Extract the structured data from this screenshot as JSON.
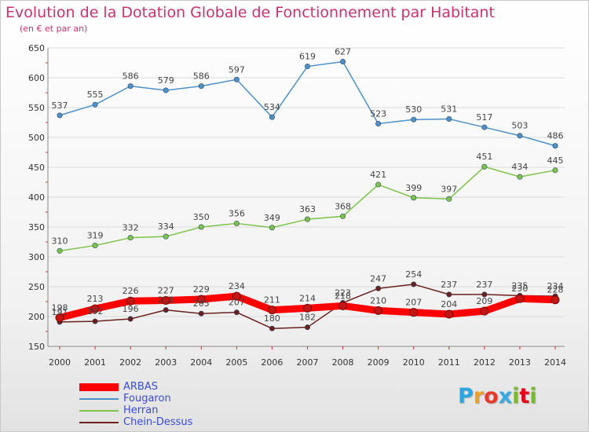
{
  "title": "Evolution de la Dotation Globale de Fonctionnement par Habitant",
  "subtitle": "(en € et par an)",
  "logo": {
    "text": "Proxiti",
    "letter_colors": [
      "#2aa7e0",
      "#f0a020",
      "#e83a2a",
      "#36a9e1",
      "#7ab92e",
      "#e2001a",
      "#7ab92e"
    ]
  },
  "chart_data": {
    "type": "line",
    "x": [
      2000,
      2001,
      2002,
      2003,
      2004,
      2005,
      2006,
      2007,
      2008,
      2009,
      2010,
      2011,
      2012,
      2013,
      2014
    ],
    "ylim": [
      150,
      650
    ],
    "yticks": [
      150,
      200,
      250,
      300,
      350,
      400,
      450,
      500,
      550,
      600,
      650
    ],
    "grid": "horizontal",
    "legend_position": "bottom-left",
    "series": [
      {
        "name": "ARBAS",
        "color": "#ff0000",
        "values": [
          198,
          213,
          226,
          227,
          229,
          234,
          211,
          214,
          218,
          210,
          207,
          204,
          209,
          230,
          228
        ]
      },
      {
        "name": "Fougaron",
        "color": "#4f90c9",
        "values": [
          537,
          555,
          586,
          579,
          586,
          597,
          534,
          619,
          627,
          523,
          530,
          531,
          517,
          503,
          486
        ]
      },
      {
        "name": "Herran",
        "color": "#7dc44a",
        "values": [
          310,
          319,
          332,
          334,
          350,
          356,
          349,
          363,
          368,
          421,
          399,
          397,
          451,
          434,
          445
        ]
      },
      {
        "name": "Chein-Dessus",
        "color": "#6b1f1f",
        "values": [
          191,
          192,
          196,
          211,
          205,
          207,
          180,
          182,
          223,
          247,
          254,
          237,
          237,
          235,
          234
        ]
      }
    ]
  }
}
